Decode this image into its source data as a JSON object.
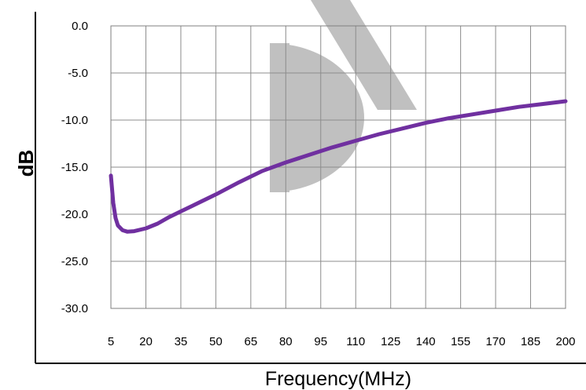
{
  "chart_data": {
    "type": "line",
    "title": "",
    "xlabel": "Frequency(MHz)",
    "ylabel": "dB",
    "xlim": [
      5,
      200
    ],
    "ylim": [
      -30,
      0
    ],
    "x_ticks": [
      "5",
      "20",
      "35",
      "50",
      "65",
      "80",
      "95",
      "110",
      "125",
      "140",
      "155",
      "170",
      "185",
      "200"
    ],
    "y_ticks": [
      "0.0",
      "-5.0",
      "-10.0",
      "-15.0",
      "-20.0",
      "-25.0",
      "-30.0"
    ],
    "grid": true,
    "legend": "none",
    "series": [
      {
        "color": "#7030a0",
        "x": [
          5,
          6,
          7,
          8,
          10,
          12,
          15,
          20,
          25,
          30,
          35,
          40,
          50,
          60,
          70,
          80,
          90,
          100,
          110,
          120,
          130,
          140,
          150,
          160,
          170,
          180,
          190,
          200
        ],
        "y": [
          -15.9,
          -18.8,
          -20.4,
          -21.2,
          -21.7,
          -21.85,
          -21.8,
          -21.5,
          -21.0,
          -20.3,
          -19.7,
          -19.1,
          -17.9,
          -16.6,
          -15.4,
          -14.5,
          -13.7,
          -12.9,
          -12.2,
          -11.5,
          -10.9,
          -10.3,
          -9.8,
          -9.4,
          -9.0,
          -8.6,
          -8.3,
          -8.0
        ]
      }
    ]
  }
}
